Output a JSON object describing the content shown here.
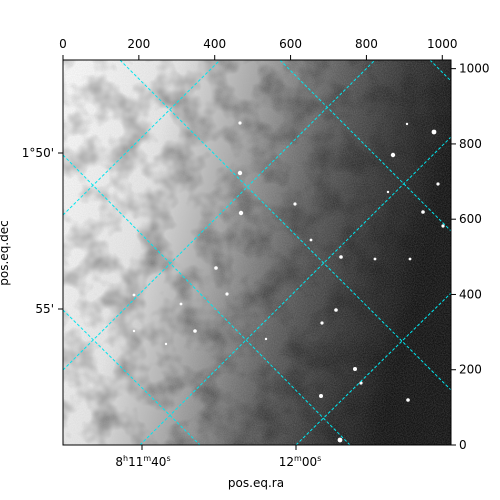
{
  "figure": {
    "xlabel": "pos.eq.ra",
    "ylabel": "pos.eq.dec",
    "top_ticks": [
      "0",
      "200",
      "400",
      "600",
      "800",
      "1000"
    ],
    "right_ticks": [
      "0",
      "200",
      "400",
      "600",
      "800",
      "1000"
    ],
    "ra_ticks": [
      {
        "h": "8",
        "m": "11",
        "s": "40",
        "hu": "h",
        "mu": "m",
        "su": "s"
      },
      {
        "h": "",
        "m": "12",
        "s": "00",
        "hu": "",
        "mu": "m",
        "su": "s"
      }
    ],
    "dec_ticks": [
      "1°50'",
      "55'"
    ]
  },
  "colors": {
    "grid": "#00e5ee",
    "frame": "#000000",
    "image_bright": "#ffffff",
    "image_dark": "#000000"
  }
}
